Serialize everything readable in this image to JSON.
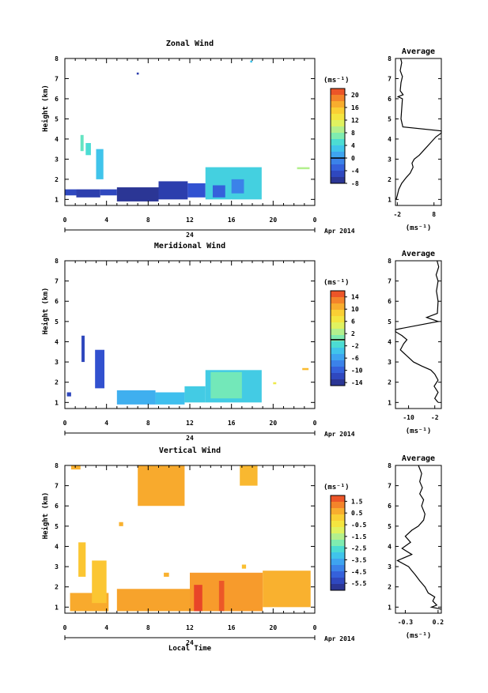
{
  "chart_data": [
    {
      "type": "heatmap",
      "title": "Zonal Wind",
      "xlabel": "",
      "ylabel": "Height (km)",
      "xlim": [
        0,
        24
      ],
      "ylim": [
        0.7,
        8
      ],
      "x_ticks": [
        "0",
        "4",
        "8",
        "12",
        "16",
        "20",
        "0"
      ],
      "y_ticks": [
        "1",
        "2",
        "3",
        "4",
        "5",
        "6",
        "7",
        "8"
      ],
      "date_tick": "24",
      "date_label": "Apr 2014",
      "colorbar": {
        "unit": "(ms⁻¹)",
        "min": -8,
        "max": 22,
        "ticks": [
          "20",
          "16",
          "12",
          "8",
          "4",
          "0",
          "-4",
          "-8"
        ],
        "zero_line": 0
      },
      "blocks": [
        {
          "x0": 0.0,
          "x1": 1.1,
          "y0": 1.2,
          "y1": 1.5,
          "v": -5
        },
        {
          "x0": 1.1,
          "x1": 3.4,
          "y0": 1.1,
          "y1": 1.5,
          "v": -6
        },
        {
          "x0": 3.4,
          "x1": 5.0,
          "y0": 1.2,
          "y1": 1.5,
          "v": -5
        },
        {
          "x0": 5.0,
          "x1": 9.0,
          "y0": 0.9,
          "y1": 1.6,
          "v": -7
        },
        {
          "x0": 9.0,
          "x1": 11.8,
          "y0": 1.0,
          "y1": 1.9,
          "v": -6
        },
        {
          "x0": 11.8,
          "x1": 13.5,
          "y0": 1.1,
          "y1": 1.8,
          "v": -4
        },
        {
          "x0": 13.5,
          "x1": 18.9,
          "y0": 1.0,
          "y1": 2.6,
          "v": 4
        },
        {
          "x0": 14.2,
          "x1": 15.4,
          "y0": 1.1,
          "y1": 1.7,
          "v": -3
        },
        {
          "x0": 16.0,
          "x1": 17.2,
          "y0": 1.3,
          "y1": 2.0,
          "v": -1
        },
        {
          "x0": 1.5,
          "x1": 1.8,
          "y0": 3.4,
          "y1": 4.2,
          "v": 6
        },
        {
          "x0": 2.0,
          "x1": 2.5,
          "y0": 3.2,
          "y1": 3.8,
          "v": 5
        },
        {
          "x0": 3.0,
          "x1": 3.7,
          "y0": 2.0,
          "y1": 3.5,
          "v": 3
        },
        {
          "x0": 6.9,
          "x1": 7.1,
          "y0": 7.2,
          "y1": 7.3,
          "v": -6
        },
        {
          "x0": 17.8,
          "x1": 18.0,
          "y0": 7.8,
          "y1": 7.9,
          "v": 3
        },
        {
          "x0": 22.3,
          "x1": 23.5,
          "y0": 2.5,
          "y1": 2.6,
          "v": 9
        }
      ],
      "average": {
        "title": "Average",
        "xlabel": "(ms⁻¹)",
        "xlim": [
          -2.5,
          10
        ],
        "x_ticks": [
          "-2",
          "8"
        ],
        "x_tick_values": [
          -2,
          8
        ],
        "y_ticks": [
          "1",
          "2",
          "3",
          "4",
          "5",
          "6",
          "7",
          "8"
        ],
        "profile": [
          [
            -2.3,
            1.0
          ],
          [
            -2.0,
            1.2
          ],
          [
            -1.6,
            1.5
          ],
          [
            -0.8,
            1.8
          ],
          [
            0.5,
            2.1
          ],
          [
            1.5,
            2.3
          ],
          [
            2.3,
            2.6
          ],
          [
            2.0,
            2.8
          ],
          [
            2.6,
            3.0
          ],
          [
            4.0,
            3.2
          ],
          [
            5.5,
            3.5
          ],
          [
            7.0,
            3.8
          ],
          [
            8.5,
            4.1
          ],
          [
            10,
            4.3
          ],
          [
            10,
            4.4
          ],
          [
            -0.5,
            4.6
          ],
          [
            -1.0,
            5.0
          ],
          [
            -0.8,
            5.5
          ],
          [
            -0.6,
            6.0
          ],
          [
            -1.8,
            6.1
          ],
          [
            -0.4,
            6.2
          ],
          [
            -1.2,
            6.4
          ],
          [
            -1.0,
            6.8
          ],
          [
            -0.6,
            7.1
          ],
          [
            -1.2,
            7.4
          ],
          [
            -0.8,
            7.8
          ],
          [
            -1.1,
            8.0
          ]
        ]
      }
    },
    {
      "type": "heatmap",
      "title": "Meridional Wind",
      "xlabel": "",
      "ylabel": "Height (km)",
      "xlim": [
        0,
        24
      ],
      "ylim": [
        0.7,
        8
      ],
      "x_ticks": [
        "0",
        "4",
        "8",
        "12",
        "16",
        "20",
        "0"
      ],
      "y_ticks": [
        "1",
        "2",
        "3",
        "4",
        "5",
        "6",
        "7",
        "8"
      ],
      "date_tick": "24",
      "date_label": "Apr 2014",
      "colorbar": {
        "unit": "(ms⁻¹)",
        "min": -15,
        "max": 16,
        "ticks": [
          "14",
          "10",
          "6",
          "2",
          "-2",
          "-6",
          "-10",
          "-14"
        ],
        "zero_line": 0
      },
      "blocks": [
        {
          "x0": 1.6,
          "x1": 1.9,
          "y0": 3.0,
          "y1": 4.3,
          "v": -12
        },
        {
          "x0": 2.9,
          "x1": 3.8,
          "y0": 1.7,
          "y1": 3.6,
          "v": -11
        },
        {
          "x0": 5.0,
          "x1": 8.7,
          "y0": 0.9,
          "y1": 1.6,
          "v": -5
        },
        {
          "x0": 8.7,
          "x1": 11.5,
          "y0": 0.9,
          "y1": 1.5,
          "v": -4
        },
        {
          "x0": 11.5,
          "x1": 13.5,
          "y0": 1.0,
          "y1": 1.8,
          "v": -3
        },
        {
          "x0": 13.5,
          "x1": 18.9,
          "y0": 1.0,
          "y1": 2.6,
          "v": -3
        },
        {
          "x0": 14.0,
          "x1": 17.0,
          "y0": 1.2,
          "y1": 2.5,
          "v": 0
        },
        {
          "x0": 0.2,
          "x1": 0.6,
          "y0": 1.3,
          "y1": 1.5,
          "v": -12
        },
        {
          "x0": 22.8,
          "x1": 23.4,
          "y0": 2.6,
          "y1": 2.7,
          "v": 10
        },
        {
          "x0": 20.0,
          "x1": 20.3,
          "y0": 1.9,
          "y1": 2.0,
          "v": 6
        }
      ],
      "average": {
        "title": "Average",
        "xlabel": "(ms⁻¹)",
        "xlim": [
          -14,
          0
        ],
        "x_ticks": [
          "-10",
          "-2"
        ],
        "x_tick_values": [
          -10,
          -2
        ],
        "y_ticks": [
          "1",
          "2",
          "3",
          "4",
          "5",
          "6",
          "7",
          "8"
        ],
        "profile": [
          [
            -1.0,
            1.0
          ],
          [
            -2.0,
            1.2
          ],
          [
            -1.0,
            1.5
          ],
          [
            -2.2,
            1.8
          ],
          [
            -1.0,
            2.1
          ],
          [
            -2.0,
            2.4
          ],
          [
            -3.2,
            2.6
          ],
          [
            -6.0,
            2.8
          ],
          [
            -8.5,
            3.0
          ],
          [
            -10.5,
            3.3
          ],
          [
            -12.5,
            3.6
          ],
          [
            -11.5,
            3.9
          ],
          [
            -10.5,
            4.1
          ],
          [
            -12.0,
            4.3
          ],
          [
            -14,
            4.5
          ],
          [
            -14,
            4.6
          ],
          [
            -1.0,
            5.0
          ],
          [
            -4.5,
            5.2
          ],
          [
            -1.2,
            5.4
          ],
          [
            -1.0,
            6.0
          ],
          [
            -1.5,
            6.5
          ],
          [
            -1.0,
            7.0
          ],
          [
            -1.6,
            7.3
          ],
          [
            -0.8,
            7.7
          ],
          [
            -1.3,
            8.0
          ]
        ]
      }
    },
    {
      "type": "heatmap",
      "title": "Vertical Wind",
      "xlabel": "Local Time",
      "ylabel": "Height (km)",
      "xlim": [
        0,
        24
      ],
      "ylim": [
        0.7,
        8
      ],
      "x_ticks": [
        "0",
        "4",
        "8",
        "12",
        "16",
        "20",
        "0"
      ],
      "y_ticks": [
        "1",
        "2",
        "3",
        "4",
        "5",
        "6",
        "7",
        "8"
      ],
      "date_tick": "24",
      "date_label": "Apr 2014",
      "colorbar": {
        "unit": "(ms⁻¹)",
        "min": -6.1,
        "max": 2.0,
        "ticks": [
          "1.5",
          "0.5",
          "-0.5",
          "-1.5",
          "-2.5",
          "-3.5",
          "-4.5",
          "-5.5"
        ]
      },
      "blocks": [
        {
          "x0": 0.5,
          "x1": 4.2,
          "y0": 0.8,
          "y1": 1.7,
          "v": 0.7
        },
        {
          "x0": 1.3,
          "x1": 2.0,
          "y0": 2.5,
          "y1": 4.2,
          "v": 0.3
        },
        {
          "x0": 2.6,
          "x1": 4.0,
          "y0": 1.2,
          "y1": 3.3,
          "v": 0.3
        },
        {
          "x0": 5.0,
          "x1": 12.0,
          "y0": 0.8,
          "y1": 1.9,
          "v": 0.8
        },
        {
          "x0": 12.0,
          "x1": 19.0,
          "y0": 0.8,
          "y1": 2.7,
          "v": 0.9
        },
        {
          "x0": 12.4,
          "x1": 13.2,
          "y0": 0.8,
          "y1": 2.1,
          "v": 1.9
        },
        {
          "x0": 14.8,
          "x1": 15.3,
          "y0": 0.8,
          "y1": 2.3,
          "v": 1.7
        },
        {
          "x0": 19.0,
          "x1": 23.6,
          "y0": 1.0,
          "y1": 2.8,
          "v": 0.6
        },
        {
          "x0": 7.0,
          "x1": 11.5,
          "y0": 6.0,
          "y1": 8.0,
          "v": 0.7
        },
        {
          "x0": 0.6,
          "x1": 1.5,
          "y0": 7.8,
          "y1": 8.0,
          "v": 0.6
        },
        {
          "x0": 16.8,
          "x1": 18.5,
          "y0": 7.0,
          "y1": 8.0,
          "v": 0.5
        },
        {
          "x0": 5.2,
          "x1": 5.6,
          "y0": 5.0,
          "y1": 5.2,
          "v": 0.6
        },
        {
          "x0": 17.0,
          "x1": 17.4,
          "y0": 2.9,
          "y1": 3.1,
          "v": 0.4
        },
        {
          "x0": 9.5,
          "x1": 10.0,
          "y0": 2.5,
          "y1": 2.7,
          "v": 0.6
        }
      ],
      "average": {
        "title": "Average",
        "xlabel": "(ms⁻¹)",
        "xlim": [
          -0.45,
          0.25
        ],
        "x_ticks": [
          "-0.3",
          "0.2"
        ],
        "x_tick_values": [
          -0.3,
          0.2
        ],
        "y_ticks": [
          "1",
          "2",
          "3",
          "4",
          "5",
          "6",
          "7",
          "8"
        ],
        "profile": [
          [
            0.25,
            0.9
          ],
          [
            0.1,
            1.0
          ],
          [
            0.18,
            1.1
          ],
          [
            0.12,
            1.3
          ],
          [
            0.15,
            1.5
          ],
          [
            0.05,
            1.7
          ],
          [
            0.0,
            2.0
          ],
          [
            -0.08,
            2.3
          ],
          [
            -0.15,
            2.6
          ],
          [
            -0.2,
            2.8
          ],
          [
            -0.25,
            3.0
          ],
          [
            -0.42,
            3.3
          ],
          [
            -0.2,
            3.6
          ],
          [
            -0.35,
            3.9
          ],
          [
            -0.22,
            4.2
          ],
          [
            -0.3,
            4.5
          ],
          [
            -0.2,
            4.8
          ],
          [
            -0.1,
            5.0
          ],
          [
            -0.02,
            5.3
          ],
          [
            0.0,
            5.6
          ],
          [
            -0.05,
            6.0
          ],
          [
            -0.02,
            6.3
          ],
          [
            -0.08,
            6.6
          ],
          [
            -0.04,
            6.9
          ],
          [
            -0.08,
            7.2
          ],
          [
            -0.05,
            7.6
          ],
          [
            -0.1,
            8.0
          ]
        ]
      }
    }
  ]
}
